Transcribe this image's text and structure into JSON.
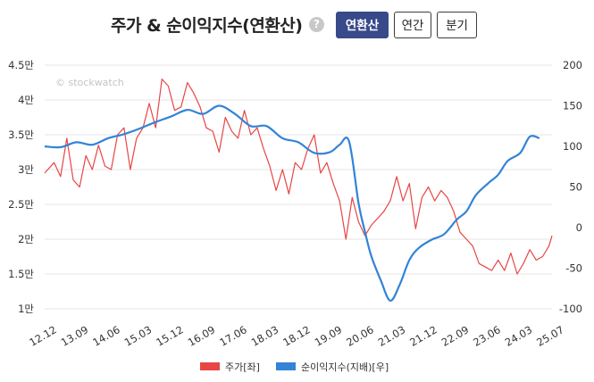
{
  "header": {
    "title": "주가 & 순이익지수(연환산)",
    "help_label": "?",
    "buttons": [
      {
        "label": "연환산",
        "active": true
      },
      {
        "label": "연간",
        "active": false
      },
      {
        "label": "분기",
        "active": false
      }
    ]
  },
  "watermark": "© stockwatch",
  "colors": {
    "price": "#e84545",
    "index": "#3383d6",
    "grid": "#e6e6e6",
    "active_button": "#394a8a"
  },
  "chart_data": {
    "type": "line",
    "x_categories": [
      "12.12",
      "13.09",
      "14.06",
      "15.03",
      "15.12",
      "16.09",
      "17.06",
      "18.03",
      "18.12",
      "19.09",
      "20.06",
      "21.03",
      "21.12",
      "22.09",
      "23.06",
      "24.03",
      "25.07"
    ],
    "y_left": {
      "min": 1,
      "max": 4.5,
      "ticks": [
        "1만",
        "1.5만",
        "2만",
        "2.5만",
        "3만",
        "3.5만",
        "4만",
        "4.5만"
      ]
    },
    "y_right": {
      "min": -100,
      "max": 200,
      "ticks": [
        "-100",
        "-50",
        "0",
        "50",
        "100",
        "150",
        "200"
      ]
    },
    "legend_position": "bottom",
    "series": [
      {
        "name": "주가[좌]",
        "axis": "left",
        "color": "#e84545",
        "t": [
          0,
          0.3,
          0.5,
          0.7,
          0.9,
          1.1,
          1.3,
          1.5,
          1.7,
          1.9,
          2.1,
          2.3,
          2.5,
          2.7,
          2.9,
          3.1,
          3.3,
          3.5,
          3.7,
          3.9,
          4.1,
          4.3,
          4.5,
          4.7,
          4.9,
          5.1,
          5.3,
          5.5,
          5.7,
          5.9,
          6.1,
          6.3,
          6.5,
          6.7,
          6.9,
          7.1,
          7.3,
          7.5,
          7.7,
          7.9,
          8.1,
          8.3,
          8.5,
          8.7,
          8.9,
          9.1,
          9.3,
          9.5,
          9.7,
          9.9,
          10.1,
          10.3,
          10.5,
          10.7,
          10.9,
          11.1,
          11.3,
          11.5,
          11.7,
          11.9,
          12.1,
          12.3,
          12.5,
          12.7,
          12.9,
          13.1,
          13.3,
          13.5,
          13.7,
          13.9,
          14.1,
          14.3,
          14.5,
          14.7,
          14.9,
          15.1,
          15.3,
          15.5,
          15.7,
          15.9,
          16.0
        ],
        "values": [
          2.95,
          3.1,
          2.9,
          3.45,
          2.85,
          2.75,
          3.2,
          3.0,
          3.35,
          3.05,
          3.0,
          3.5,
          3.6,
          3.0,
          3.45,
          3.6,
          3.95,
          3.6,
          4.3,
          4.2,
          3.85,
          3.9,
          4.25,
          4.1,
          3.9,
          3.6,
          3.55,
          3.25,
          3.75,
          3.55,
          3.45,
          3.85,
          3.5,
          3.6,
          3.3,
          3.05,
          2.7,
          3.0,
          2.65,
          3.1,
          3.0,
          3.3,
          3.5,
          2.95,
          3.1,
          2.8,
          2.55,
          2.0,
          2.6,
          2.25,
          2.05,
          2.2,
          2.3,
          2.4,
          2.55,
          2.9,
          2.55,
          2.8,
          2.15,
          2.6,
          2.75,
          2.55,
          2.7,
          2.6,
          2.4,
          2.1,
          2.0,
          1.9,
          1.65,
          1.6,
          1.55,
          1.7,
          1.55,
          1.8,
          1.5,
          1.65,
          1.85,
          1.7,
          1.75,
          1.9,
          2.05
        ]
      },
      {
        "name": "순이익지수(지배)[우]",
        "axis": "right",
        "color": "#3383d6",
        "t": [
          0,
          0.5,
          1.0,
          1.5,
          2.0,
          2.5,
          3.0,
          3.5,
          4.0,
          4.5,
          5.0,
          5.5,
          6.0,
          6.5,
          7.0,
          7.5,
          8.0,
          8.5,
          9.0,
          9.3,
          9.6,
          9.9,
          10.1,
          10.3,
          10.6,
          10.9,
          11.2,
          11.5,
          11.8,
          12.2,
          12.6,
          13.0,
          13.3,
          13.6,
          14.0,
          14.3,
          14.6,
          15.0,
          15.3,
          15.6
        ],
        "values": [
          100,
          99,
          105,
          102,
          110,
          115,
          122,
          130,
          137,
          145,
          140,
          150,
          140,
          125,
          125,
          110,
          105,
          92,
          93,
          102,
          106,
          30,
          -5,
          -35,
          -65,
          -90,
          -70,
          -40,
          -25,
          -15,
          -8,
          10,
          20,
          40,
          55,
          65,
          82,
          92,
          112,
          110
        ]
      }
    ]
  }
}
